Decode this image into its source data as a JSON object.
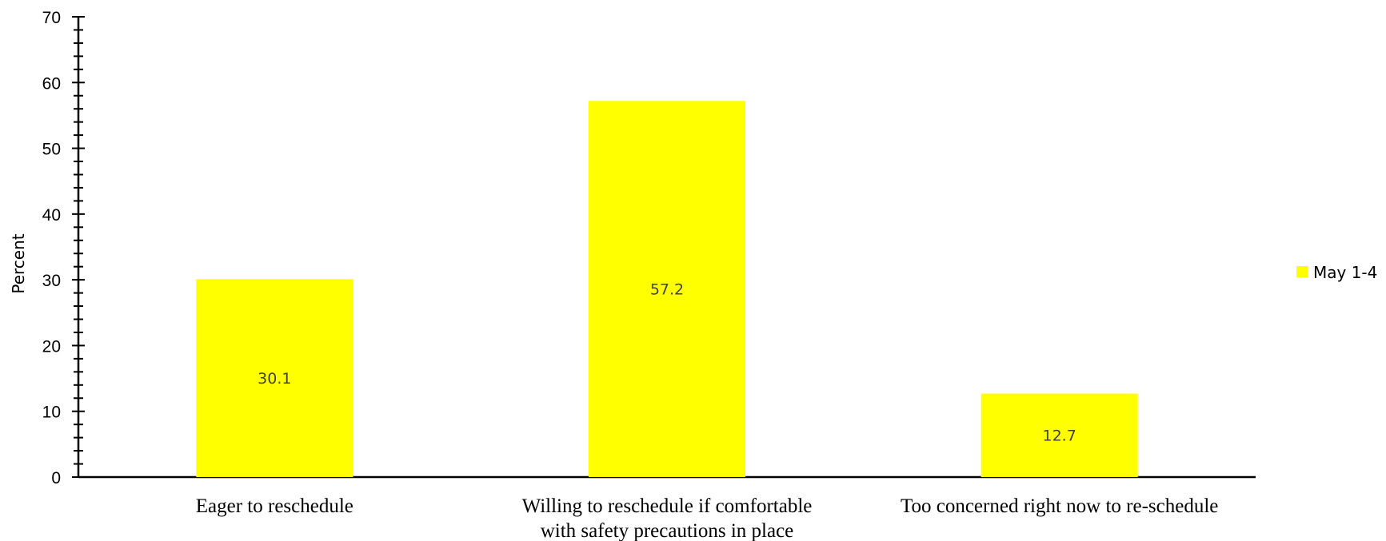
{
  "chart_data": {
    "type": "bar",
    "categories": [
      [
        "Eager to reschedule"
      ],
      [
        "Willing to reschedule if comfortable",
        "with safety precautions in place"
      ],
      [
        "Too concerned right now to re-schedule"
      ]
    ],
    "series": [
      {
        "name": "May 1-4",
        "values": [
          30.1,
          57.2,
          12.7
        ],
        "color": "#ffff00"
      }
    ],
    "data_labels": [
      "30.1",
      "57.2",
      "12.7"
    ],
    "ylabel": "Percent",
    "ylim": [
      0,
      70
    ],
    "yticks": [
      0,
      10,
      20,
      30,
      40,
      50,
      60,
      70
    ],
    "minor_tick_step": 2,
    "grid": false,
    "legend_position": "right"
  }
}
